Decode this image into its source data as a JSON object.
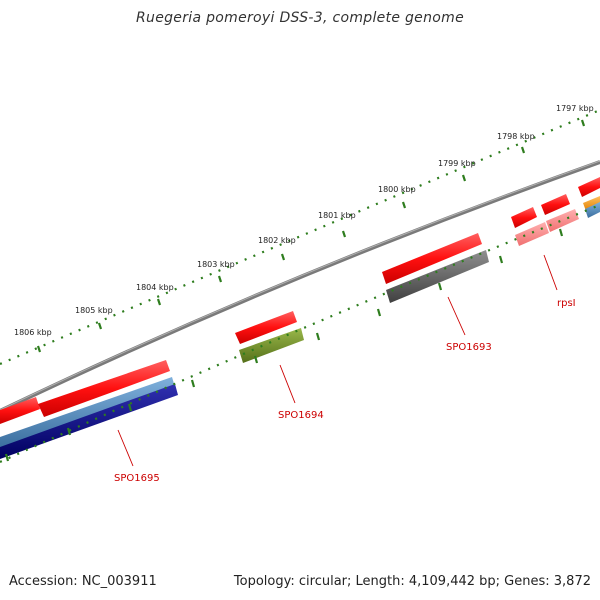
{
  "title": "Ruegeria pomeroyi DSS-3, complete genome",
  "accession": "Accession: NC_003911",
  "summary": "Topology: circular; Length: 4,109,442 bp; Genes: 3,872",
  "ticks": [
    "1806 kbp",
    "1805 kbp",
    "1804 kbp",
    "1803 kbp",
    "1802 kbp",
    "1801 kbp",
    "1800 kbp",
    "1799 kbp",
    "1798 kbp",
    "1797 kbp"
  ],
  "gene_labels": [
    "SPO1695",
    "SPO1694",
    "SPO1693",
    "rpsI"
  ],
  "colors": {
    "backbone": "#808080",
    "tick": "#2e7d1e",
    "cds_forward": "#ff1a1a",
    "cds_reverse": "#ff8080",
    "label": "#cc0000",
    "steelblue": "#4682b4",
    "navy": "#000080",
    "olive": "#6b8e23",
    "dimgray": "#606060",
    "orange": "#ff9900"
  }
}
